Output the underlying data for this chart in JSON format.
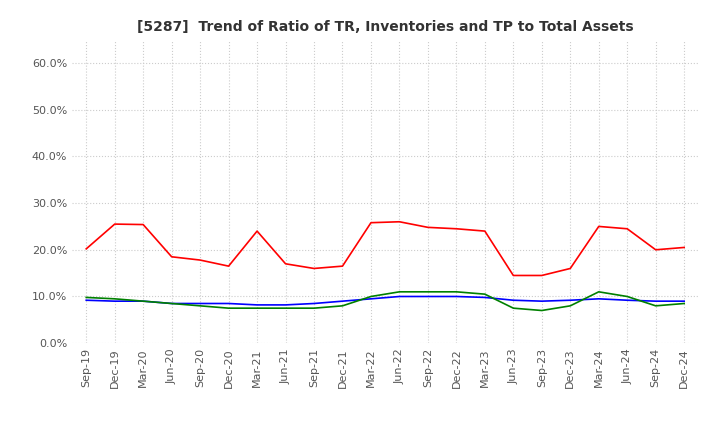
{
  "title": "[5287]  Trend of Ratio of TR, Inventories and TP to Total Assets",
  "x_labels": [
    "Sep-19",
    "Dec-19",
    "Mar-20",
    "Jun-20",
    "Sep-20",
    "Dec-20",
    "Mar-21",
    "Jun-21",
    "Sep-21",
    "Dec-21",
    "Mar-22",
    "Jun-22",
    "Sep-22",
    "Dec-22",
    "Mar-23",
    "Jun-23",
    "Sep-23",
    "Dec-23",
    "Mar-24",
    "Jun-24",
    "Sep-24",
    "Dec-24"
  ],
  "trade_receivables": [
    0.202,
    0.255,
    0.254,
    0.185,
    0.178,
    0.165,
    0.24,
    0.17,
    0.16,
    0.165,
    0.258,
    0.26,
    0.248,
    0.245,
    0.24,
    0.145,
    0.145,
    0.16,
    0.25,
    0.245,
    0.2,
    0.205
  ],
  "inventories": [
    0.092,
    0.09,
    0.09,
    0.085,
    0.085,
    0.085,
    0.082,
    0.082,
    0.085,
    0.09,
    0.095,
    0.1,
    0.1,
    0.1,
    0.098,
    0.092,
    0.09,
    0.092,
    0.095,
    0.092,
    0.09,
    0.09
  ],
  "trade_payables": [
    0.098,
    0.095,
    0.09,
    0.085,
    0.08,
    0.075,
    0.075,
    0.075,
    0.075,
    0.08,
    0.1,
    0.11,
    0.11,
    0.11,
    0.105,
    0.075,
    0.07,
    0.08,
    0.11,
    0.1,
    0.08,
    0.085
  ],
  "tr_color": "#ff0000",
  "inv_color": "#0000ff",
  "tp_color": "#008000",
  "ylim": [
    0.0,
    0.65
  ],
  "yticks": [
    0.0,
    0.1,
    0.2,
    0.3,
    0.4,
    0.5,
    0.6
  ],
  "background_color": "#ffffff",
  "grid_color": "#cccccc",
  "title_fontsize": 10,
  "tick_fontsize": 8,
  "legend_fontsize": 9
}
